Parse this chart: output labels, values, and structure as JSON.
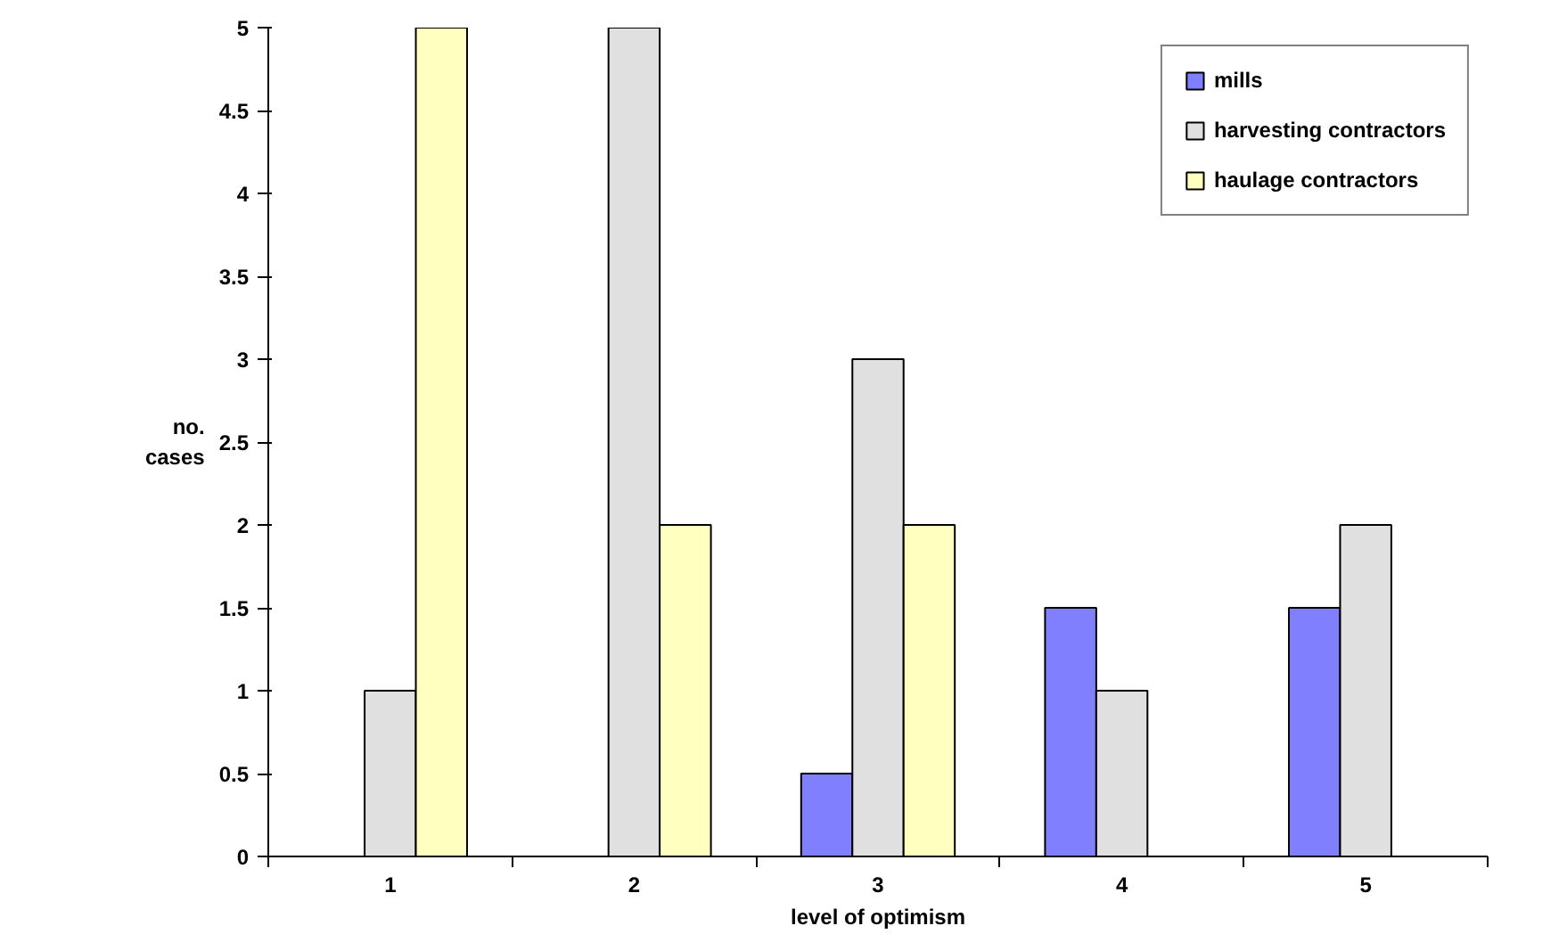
{
  "chart_data": {
    "type": "bar",
    "xlabel": "level of optimism",
    "ylabel": "no. cases",
    "categories": [
      "1",
      "2",
      "3",
      "4",
      "5"
    ],
    "series": [
      {
        "name": "mills",
        "color": "#8080ff",
        "values": [
          null,
          null,
          0.5,
          1.5,
          1.5
        ]
      },
      {
        "name": "harvesting contractors",
        "color": "#e0e0e0",
        "values": [
          1,
          5,
          3,
          1,
          2
        ]
      },
      {
        "name": "haulage contractors",
        "color": "#ffffc0",
        "values": [
          5,
          2,
          2,
          null,
          null
        ]
      }
    ],
    "ylim": [
      0,
      5
    ],
    "yticks": [
      0,
      0.5,
      1,
      1.5,
      2,
      2.5,
      3,
      3.5,
      4,
      4.5,
      5
    ],
    "grid": false,
    "legend": "top right"
  }
}
